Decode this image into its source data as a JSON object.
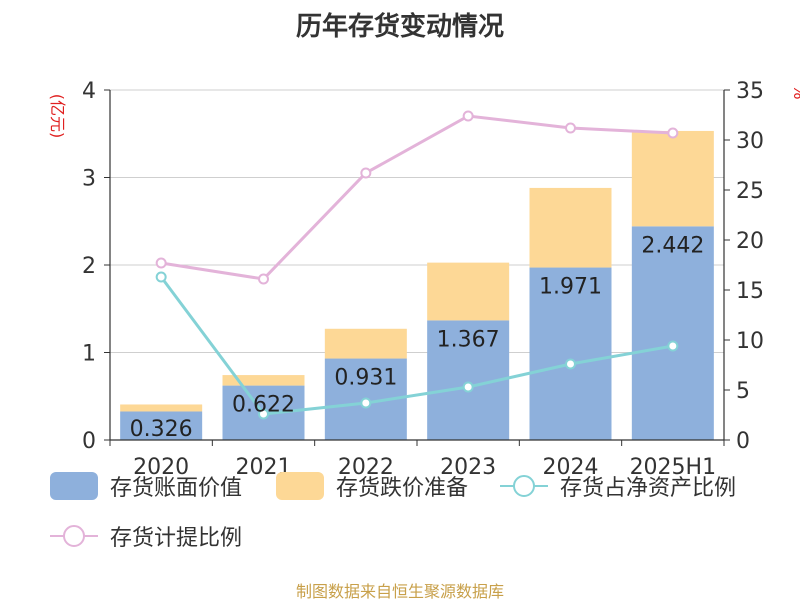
{
  "chart_data": {
    "type": "bar",
    "title": "历年存货变动情况",
    "categories": [
      "2020",
      "2021",
      "2022",
      "2023",
      "2024",
      "2025H1"
    ],
    "y_left": {
      "label": "(亿元)",
      "range": [
        0,
        4
      ],
      "ticks": [
        "0",
        "1",
        "2",
        "3",
        "4"
      ]
    },
    "y_right": {
      "label": "%",
      "range": [
        0,
        35
      ],
      "ticks": [
        "0",
        "5",
        "10",
        "15",
        "20",
        "25",
        "30",
        "35"
      ]
    },
    "grid": true,
    "stacked": true,
    "series": [
      {
        "name": "存货账面价值",
        "type": "bar",
        "axis": "left",
        "color": "#8eb0dc",
        "values": [
          0.326,
          0.622,
          0.931,
          1.367,
          1.971,
          2.442
        ],
        "labels": [
          "0.326",
          "0.622",
          "0.931",
          "1.367",
          "1.971",
          "2.442"
        ]
      },
      {
        "name": "存货跌价准备",
        "type": "bar",
        "axis": "left",
        "color": "#fdd896",
        "values": [
          0.08,
          0.12,
          0.34,
          0.66,
          0.91,
          1.09
        ]
      },
      {
        "name": "存货占净资产比例",
        "type": "line",
        "axis": "right",
        "color": "#84d2d6",
        "values": [
          16.3,
          2.6,
          3.7,
          5.3,
          7.6,
          9.4
        ]
      },
      {
        "name": "存货计提比例",
        "type": "line",
        "axis": "right",
        "color": "#e3b3d9",
        "values": [
          17.7,
          16.1,
          26.7,
          32.4,
          31.2,
          30.7
        ]
      }
    ],
    "legend_position": "bottom"
  },
  "footer": {
    "source": "制图数据来自恒生聚源数据库"
  }
}
